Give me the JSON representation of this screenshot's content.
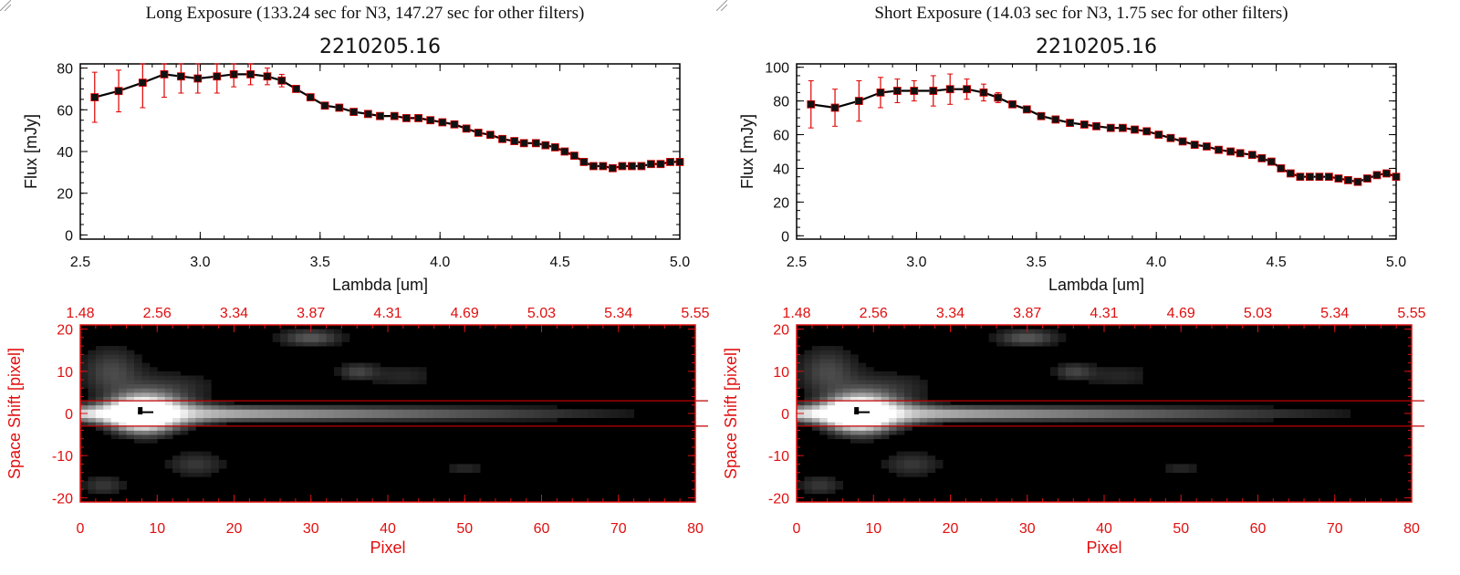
{
  "panels": [
    {
      "title": "Long Exposure (133.24 sec for N3, 147.27 sec for other filters)",
      "spectrum_title": "2210205.16",
      "spectrum_xlabel": "Lambda [um]",
      "spectrum_ylabel": "Flux [mJy]",
      "image_xlabel": "Pixel",
      "image_ylabel": "Space Shift [pixel]"
    },
    {
      "title": "Short Exposure (14.03 sec for N3, 1.75 sec for other filters)",
      "spectrum_title": "2210205.16",
      "spectrum_xlabel": "Lambda [um]",
      "spectrum_ylabel": "Flux [mJy]",
      "image_xlabel": "Pixel",
      "image_ylabel": "Space Shift [pixel]"
    }
  ],
  "colors": {
    "axis": "#000000",
    "error_bar": "#e00000",
    "image_axis": "#e01010",
    "aperture_line": "#c00000"
  },
  "chart_data": [
    {
      "type": "line",
      "title": "2210205.16",
      "xlabel": "Lambda [um]",
      "ylabel": "Flux [mJy]",
      "xlim": [
        2.5,
        5.0
      ],
      "ylim": [
        -2,
        82
      ],
      "xticks": [
        "2.5",
        "3.0",
        "3.5",
        "4.0",
        "4.5",
        "5.0"
      ],
      "yticks": [
        "0",
        "20",
        "40",
        "60",
        "80"
      ],
      "x": [
        2.56,
        2.66,
        2.76,
        2.85,
        2.92,
        2.99,
        3.07,
        3.14,
        3.21,
        3.28,
        3.34,
        3.4,
        3.46,
        3.52,
        3.58,
        3.64,
        3.7,
        3.75,
        3.81,
        3.86,
        3.91,
        3.96,
        4.01,
        4.06,
        4.11,
        4.16,
        4.21,
        4.26,
        4.31,
        4.35,
        4.4,
        4.44,
        4.48,
        4.52,
        4.56,
        4.6,
        4.64,
        4.68,
        4.72,
        4.76,
        4.8,
        4.84,
        4.88,
        4.92,
        4.96,
        5.0
      ],
      "y": [
        66,
        69,
        73,
        77,
        76,
        75,
        76,
        77,
        77,
        76,
        74,
        70,
        66,
        62,
        61,
        59,
        58,
        57,
        57,
        56,
        56,
        55,
        54,
        53,
        51,
        49,
        48,
        46,
        45,
        44,
        44,
        43,
        42,
        40,
        38,
        35,
        33,
        33,
        32,
        33,
        33,
        33,
        34,
        34,
        35,
        35
      ],
      "yerr": [
        12,
        10,
        12,
        11,
        8,
        7,
        8,
        6,
        5,
        4,
        3,
        1.5,
        1,
        1,
        1,
        1,
        1,
        1,
        1,
        1,
        1,
        1,
        1,
        1,
        1,
        1,
        1,
        1,
        1,
        1,
        1,
        1,
        1,
        1,
        1,
        1,
        1,
        1,
        1,
        1,
        1,
        1,
        1,
        1,
        1,
        1
      ]
    },
    {
      "type": "line",
      "title": "2210205.16",
      "xlabel": "Lambda [um]",
      "ylabel": "Flux [mJy]",
      "xlim": [
        2.5,
        5.0
      ],
      "ylim": [
        -2,
        102
      ],
      "xticks": [
        "2.5",
        "3.0",
        "3.5",
        "4.0",
        "4.5",
        "5.0"
      ],
      "yticks": [
        "0",
        "20",
        "40",
        "60",
        "80",
        "100"
      ],
      "x": [
        2.56,
        2.66,
        2.76,
        2.85,
        2.92,
        2.99,
        3.07,
        3.14,
        3.21,
        3.28,
        3.34,
        3.4,
        3.46,
        3.52,
        3.58,
        3.64,
        3.7,
        3.75,
        3.81,
        3.86,
        3.91,
        3.96,
        4.01,
        4.06,
        4.11,
        4.16,
        4.21,
        4.26,
        4.31,
        4.35,
        4.4,
        4.44,
        4.48,
        4.52,
        4.56,
        4.6,
        4.64,
        4.68,
        4.72,
        4.76,
        4.8,
        4.84,
        4.88,
        4.92,
        4.96,
        5.0
      ],
      "y": [
        78,
        76,
        80,
        85,
        86,
        86,
        86,
        87,
        87,
        85,
        82,
        78,
        75,
        71,
        69,
        67,
        66,
        65,
        64,
        64,
        63,
        62,
        60,
        58,
        56,
        54,
        53,
        51,
        50,
        49,
        48,
        46,
        44,
        40,
        37,
        35,
        35,
        35,
        35,
        34,
        33,
        32,
        34,
        36,
        37,
        35
      ],
      "yerr": [
        14,
        11,
        12,
        9,
        7,
        6,
        9,
        9,
        6,
        5,
        3,
        2,
        1,
        1,
        1,
        1,
        1,
        1,
        1,
        1,
        1,
        1,
        1,
        1,
        1,
        1,
        1,
        1,
        1,
        1,
        1,
        1,
        1,
        1,
        1,
        1,
        1,
        1,
        1,
        1,
        1,
        1,
        1,
        1,
        1,
        1
      ]
    },
    {
      "type": "heatmap",
      "xlabel": "Pixel",
      "ylabel": "Space Shift [pixel]",
      "xlim": [
        0,
        80
      ],
      "ylim": [
        -21,
        21
      ],
      "xticks": [
        "0",
        "10",
        "20",
        "30",
        "40",
        "50",
        "60",
        "70",
        "80"
      ],
      "yticks": [
        "-20",
        "-10",
        "0",
        "10",
        "20"
      ],
      "top_axis_ticks": [
        "1.48",
        "2.56",
        "3.34",
        "3.87",
        "4.31",
        "4.69",
        "5.03",
        "5.34",
        "5.55"
      ],
      "aperture_lines": [
        3,
        -3
      ]
    },
    {
      "type": "heatmap",
      "xlabel": "Pixel",
      "ylabel": "Space Shift [pixel]",
      "xlim": [
        0,
        80
      ],
      "ylim": [
        -21,
        21
      ],
      "xticks": [
        "0",
        "10",
        "20",
        "30",
        "40",
        "50",
        "60",
        "70",
        "80"
      ],
      "yticks": [
        "-20",
        "-10",
        "0",
        "10",
        "20"
      ],
      "top_axis_ticks": [
        "1.48",
        "2.56",
        "3.34",
        "3.87",
        "4.31",
        "4.69",
        "5.03",
        "5.34",
        "5.55"
      ],
      "aperture_lines": [
        3,
        -3
      ]
    }
  ]
}
